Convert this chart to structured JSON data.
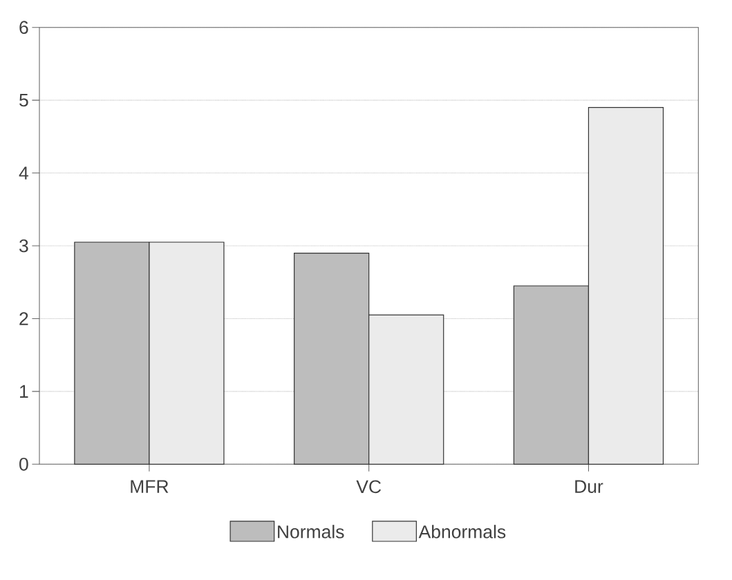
{
  "chart_data": {
    "type": "bar",
    "categories": [
      "MFR",
      "VC",
      "Dur"
    ],
    "series": [
      {
        "name": "Normals",
        "color": "#bdbdbd",
        "values": [
          3.05,
          2.9,
          2.45
        ]
      },
      {
        "name": "Abnormals",
        "color": "#ebebeb",
        "values": [
          3.05,
          2.05,
          4.9
        ]
      }
    ],
    "ylim": [
      0,
      6
    ],
    "yticks": [
      0,
      1,
      2,
      3,
      4,
      5,
      6
    ],
    "grid": "y",
    "legend": "bottom"
  }
}
